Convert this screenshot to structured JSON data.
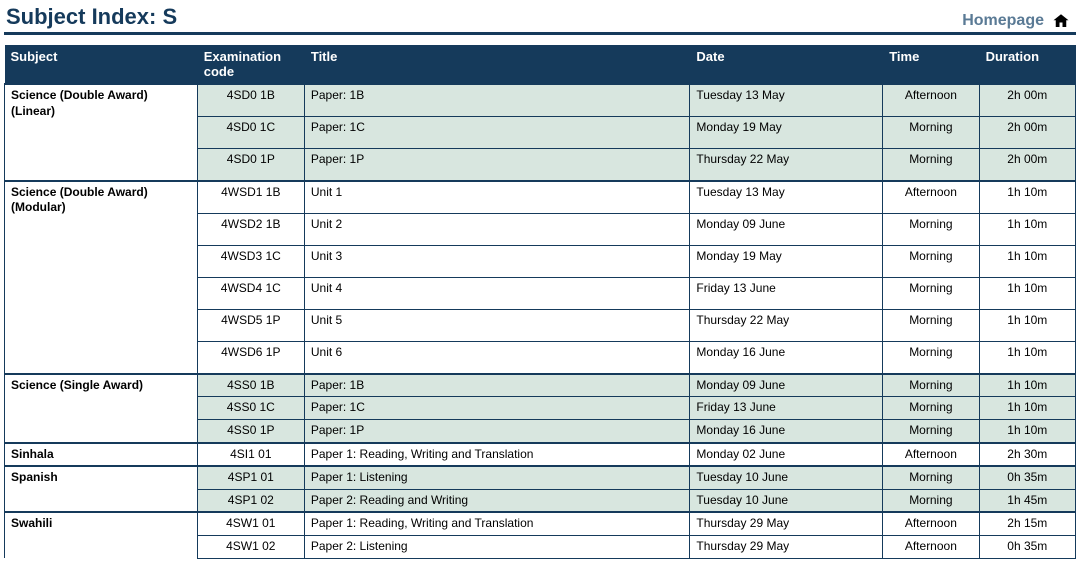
{
  "header": {
    "title": "Subject Index: S",
    "homepage_label": "Homepage"
  },
  "columns": [
    "Subject",
    "Examination code",
    "Title",
    "Date",
    "Time",
    "Duration"
  ],
  "col_widths_pct": [
    18,
    10,
    36,
    18,
    9,
    9
  ],
  "colors": {
    "primary": "#153a5b",
    "shade": "#d8e6df",
    "link": "#5a7a95"
  },
  "subjects": [
    {
      "name": "Science (Double Award) (Linear)",
      "shaded": true,
      "spaced": true,
      "rows": [
        {
          "code": "4SD0 1B",
          "title": "Paper: 1B",
          "date": "Tuesday 13 May",
          "time": "Afternoon",
          "duration": "2h 00m"
        },
        {
          "code": "4SD0 1C",
          "title": "Paper: 1C",
          "date": "Monday 19 May",
          "time": "Morning",
          "duration": "2h 00m"
        },
        {
          "code": "4SD0 1P",
          "title": "Paper: 1P",
          "date": "Thursday 22 May",
          "time": "Morning",
          "duration": "2h 00m"
        }
      ]
    },
    {
      "name": "Science (Double Award) (Modular)",
      "shaded": false,
      "spaced": true,
      "rows": [
        {
          "code": "4WSD1 1B",
          "title": "Unit 1",
          "date": "Tuesday 13 May",
          "time": "Afternoon",
          "duration": "1h 10m"
        },
        {
          "code": "4WSD2 1B",
          "title": "Unit 2",
          "date": "Monday 09 June",
          "time": "Morning",
          "duration": "1h 10m"
        },
        {
          "code": "4WSD3 1C",
          "title": "Unit 3",
          "date": "Monday 19 May",
          "time": "Morning",
          "duration": "1h 10m"
        },
        {
          "code": "4WSD4 1C",
          "title": "Unit 4",
          "date": "Friday 13 June",
          "time": "Morning",
          "duration": "1h 10m"
        },
        {
          "code": "4WSD5 1P",
          "title": "Unit 5",
          "date": "Thursday 22 May",
          "time": "Morning",
          "duration": "1h 10m"
        },
        {
          "code": "4WSD6 1P",
          "title": "Unit 6",
          "date": "Monday 16 June",
          "time": "Morning",
          "duration": "1h 10m"
        }
      ]
    },
    {
      "name": "Science (Single Award)",
      "shaded": true,
      "spaced": false,
      "rows": [
        {
          "code": "4SS0 1B",
          "title": "Paper: 1B",
          "date": "Monday 09 June",
          "time": "Morning",
          "duration": "1h 10m"
        },
        {
          "code": "4SS0 1C",
          "title": "Paper: 1C",
          "date": "Friday 13 June",
          "time": "Morning",
          "duration": "1h 10m"
        },
        {
          "code": "4SS0 1P",
          "title": "Paper: 1P",
          "date": "Monday 16 June",
          "time": "Morning",
          "duration": "1h 10m"
        }
      ]
    },
    {
      "name": "Sinhala",
      "shaded": false,
      "spaced": false,
      "rows": [
        {
          "code": "4SI1 01",
          "title": "Paper 1: Reading, Writing and Translation",
          "date": "Monday 02 June",
          "time": "Afternoon",
          "duration": "2h 30m"
        }
      ]
    },
    {
      "name": "Spanish",
      "shaded": true,
      "spaced": false,
      "rows": [
        {
          "code": "4SP1 01",
          "title": "Paper 1: Listening",
          "date": "Tuesday 10 June",
          "time": "Morning",
          "duration": "0h 35m"
        },
        {
          "code": "4SP1 02",
          "title": "Paper 2: Reading and Writing",
          "date": "Tuesday 10 June",
          "time": "Morning",
          "duration": "1h 45m"
        }
      ]
    },
    {
      "name": "Swahili",
      "shaded": false,
      "spaced": false,
      "rows": [
        {
          "code": "4SW1 01",
          "title": "Paper 1: Reading, Writing and Translation",
          "date": "Thursday 29 May",
          "time": "Afternoon",
          "duration": "2h 15m"
        },
        {
          "code": "4SW1 02",
          "title": "Paper 2: Listening",
          "date": "Thursday 29 May",
          "time": "Afternoon",
          "duration": "0h 35m"
        }
      ]
    }
  ]
}
